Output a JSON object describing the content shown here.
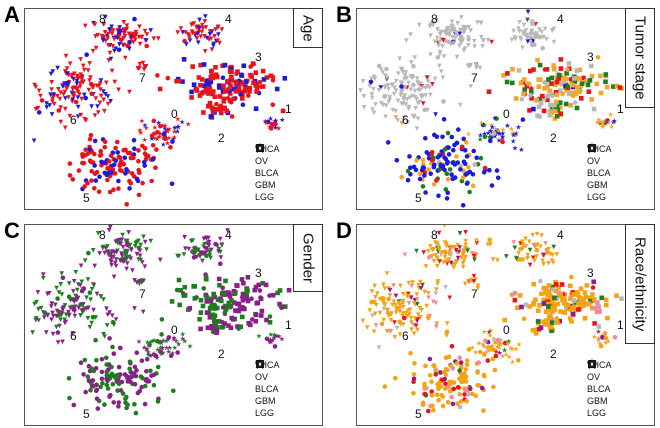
{
  "chart_data": [
    {
      "panel": "A",
      "type": "scatter",
      "title": "Age",
      "cluster_labels": [
        "0",
        "1",
        "2",
        "3",
        "4",
        "5",
        "6",
        "7",
        "8"
      ],
      "legend": [
        "THCA",
        "OV",
        "BLCA",
        "GBM",
        "LGG"
      ],
      "colors": [
        "#e8141b",
        "#1b1bd8"
      ]
    },
    {
      "panel": "B",
      "type": "scatter",
      "title": "Tumor stage",
      "cluster_labels": [
        "0",
        "1",
        "2",
        "3",
        "4",
        "5",
        "6",
        "7",
        "8"
      ],
      "legend": [
        "THCA",
        "OV",
        "BLCA",
        "GBM",
        "LGG"
      ],
      "colors": [
        "#b8b8b8",
        "#1b1bd8",
        "#f4a62a",
        "#e8141b",
        "#1e7d1e"
      ]
    },
    {
      "panel": "C",
      "type": "scatter",
      "title": "Gender",
      "cluster_labels": [
        "0",
        "1",
        "2",
        "3",
        "4",
        "5",
        "6",
        "7",
        "8"
      ],
      "legend": [
        "THCA",
        "OV",
        "BLCA",
        "GBM",
        "LGG"
      ],
      "colors": [
        "#8a1f8a",
        "#1e7d1e"
      ]
    },
    {
      "panel": "D",
      "type": "scatter",
      "title": "Race/ethnicity",
      "cluster_labels": [
        "0",
        "1",
        "2",
        "3",
        "4",
        "5",
        "6",
        "7",
        "8"
      ],
      "legend": [
        "THCA",
        "OV",
        "BLCA",
        "GBM",
        "LGG"
      ],
      "colors": [
        "#f5a316",
        "#e8141b",
        "#8a1f8a",
        "#1e7d1e",
        "#f08aa0",
        "#b8b8b8"
      ]
    }
  ]
}
